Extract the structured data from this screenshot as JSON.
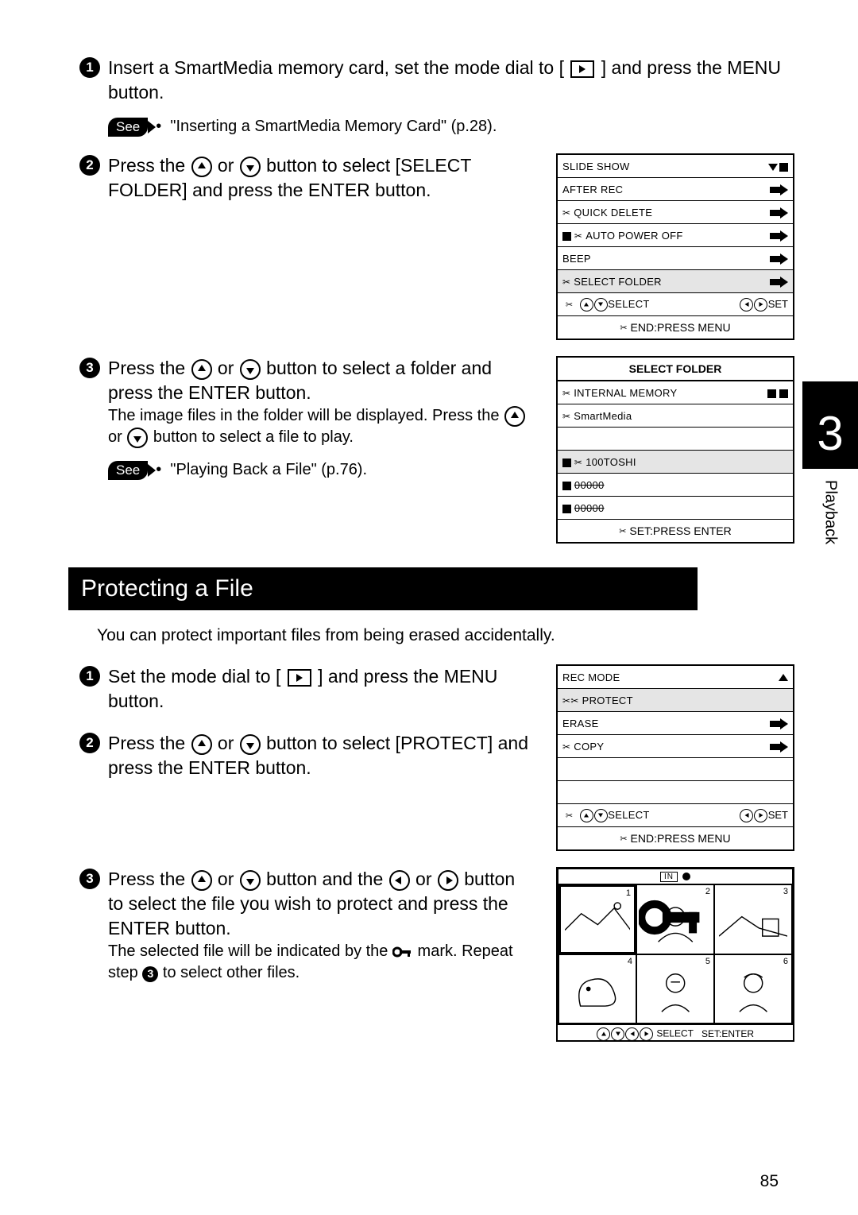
{
  "page_number": "85",
  "chapter": {
    "number": "3",
    "label": "Playback"
  },
  "section_heading": "Protecting a File",
  "intro_text": "You can protect important files from being erased accidentally.",
  "steps_top": {
    "s1": {
      "text_a": "Insert a SmartMedia memory card, set the mode dial to [ ",
      "text_b": " ] and press the MENU button."
    },
    "see1": {
      "label": "See",
      "bullet": "•",
      "text": "\"Inserting a SmartMedia Memory Card\" (p.28)."
    },
    "s2": {
      "text_a": "Press the ",
      "text_b": " or ",
      "text_c": " button to select [SELECT FOLDER] and press the ENTER button."
    },
    "s3": {
      "text_a": "Press the ",
      "text_b": " or ",
      "text_c": " button to select a folder and press the ENTER button.",
      "sub_a": "The image files in the folder will be displayed. Press the ",
      "sub_b": " or ",
      "sub_c": " button to select a file to play."
    },
    "see2": {
      "label": "See",
      "bullet": "•",
      "text": "\"Playing Back a File\" (p.76)."
    }
  },
  "steps_bottom": {
    "s1": {
      "text_a": "Set the mode dial to [ ",
      "text_b": " ] and press the MENU button."
    },
    "s2": {
      "text_a": "Press the ",
      "text_b": " or ",
      "text_c": " button to select [PROTECT] and press the ENTER button."
    },
    "s3": {
      "text_a": "Press the ",
      "text_b": " or ",
      "text_c": " button and the ",
      "text_d": " or ",
      "text_e": " button to select the file you wish to protect and press the ENTER button.",
      "sub_a": "The selected file will be indicated by the ",
      "sub_b": " mark. Repeat step ",
      "sub_c": " to select other files."
    }
  },
  "lcd1": {
    "rows": [
      {
        "label": "SLIDE SHOW",
        "val_type": "tri-sq"
      },
      {
        "label": "AFTER REC",
        "val_type": "arrow"
      },
      {
        "label": "QUICK DELETE",
        "val_type": "arrow",
        "icon": "scissors"
      },
      {
        "label": "AUTO POWER OFF",
        "val_type": "arrow",
        "icon": "sq-scissors"
      },
      {
        "label": "BEEP",
        "val_type": "arrow"
      },
      {
        "label": "SELECT FOLDER",
        "val_type": "arrow",
        "icon": "scissors",
        "highlight": true
      }
    ],
    "footer1_l": "SELECT",
    "footer1_r": "SET",
    "footer2": "END:PRESS MENU"
  },
  "lcd2": {
    "title": "SELECT FOLDER",
    "rows": [
      {
        "label": "INTERNAL MEMORY",
        "icon": "scissors",
        "val": "sq-sq"
      },
      {
        "label": "SmartMedia",
        "icon": "scissors"
      },
      {
        "label": "",
        "spacer": true
      },
      {
        "label": "100TOSHI",
        "icon": "sq-scissors",
        "highlight": true
      },
      {
        "label": "00000",
        "icon": "sq",
        "strike": true
      },
      {
        "label": "00000",
        "icon": "sq",
        "strike": true
      }
    ],
    "footer": "SET:PRESS ENTER"
  },
  "lcd3": {
    "rows": [
      {
        "label": "REC MODE",
        "val_type": "tri"
      },
      {
        "label": "PROTECT",
        "highlight": true,
        "icon": "sci-pair"
      },
      {
        "label": "ERASE",
        "val_type": "arrow"
      },
      {
        "label": "COPY",
        "val_type": "arrow",
        "icon": "scissors"
      },
      {
        "label": "",
        "spacer": true
      },
      {
        "label": "",
        "spacer": true
      }
    ],
    "footer1_l": "SELECT",
    "footer1_r": "SET",
    "footer2": "END:PRESS MENU"
  },
  "thumb": {
    "in_label": "IN",
    "footer_l": "SELECT",
    "footer_r": "SET:ENTER"
  }
}
